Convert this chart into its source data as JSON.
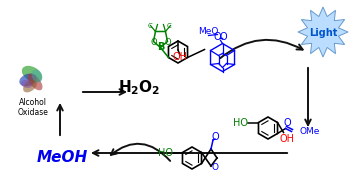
{
  "bg_color": "#ffffff",
  "fig_width": 3.6,
  "fig_height": 1.89,
  "dpi": 100,
  "light_text": "Light",
  "light_color": "#0055cc",
  "light_bg": "#aaddff",
  "light_edge": "#6699cc",
  "meoh_text": "MeOH",
  "meoh_color": "#0000ee",
  "h2o2_text": "$\\mathbf{H_2O_2}$",
  "alcohol_text": "Alcohol\nOxidase",
  "enzyme_colors": [
    "#228822",
    "#aa2222",
    "#2222aa",
    "#885500",
    "#226688"
  ],
  "arrow_lw": 1.4,
  "cycle_arrow_color": "#111111"
}
